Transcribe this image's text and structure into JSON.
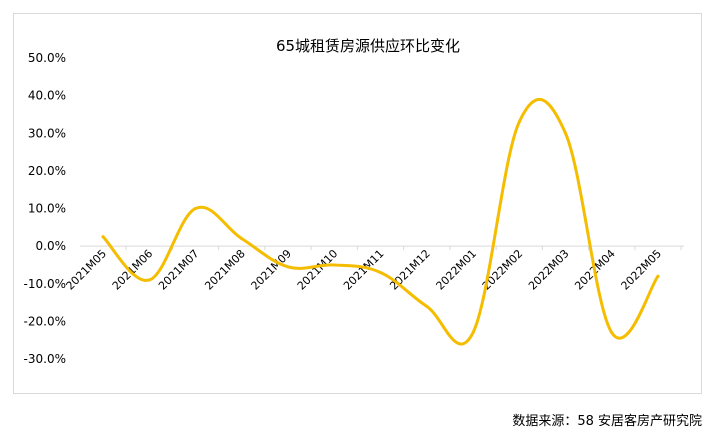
{
  "chart_data": {
    "type": "line",
    "title": "65城租赁房源供应环比变化",
    "categories": [
      "2021M05",
      "2021M06",
      "2021M07",
      "2021M08",
      "2021M09",
      "2021M10",
      "2021M11",
      "2021M12",
      "2022M01",
      "2022M02",
      "2022M03",
      "2022M04",
      "2022M05"
    ],
    "series": [
      {
        "values": [
          2.5,
          -9.0,
          10.0,
          2.0,
          -5.5,
          -5.0,
          -7.0,
          -16.0,
          -23.0,
          33.0,
          30.0,
          -23.0,
          -8.0
        ],
        "color": "#F5BD00"
      }
    ],
    "y_ticks": [
      "50.0%",
      "40.0%",
      "30.0%",
      "20.0%",
      "10.0%",
      "0.0%",
      "-10.0%",
      "-20.0%",
      "-30.0%"
    ],
    "ylim": [
      -30,
      50
    ],
    "y_unit": "%",
    "xlabel": "",
    "ylabel": "",
    "grid": false,
    "legend": "none"
  },
  "source_note": "数据来源：58 安居客房产研究院"
}
